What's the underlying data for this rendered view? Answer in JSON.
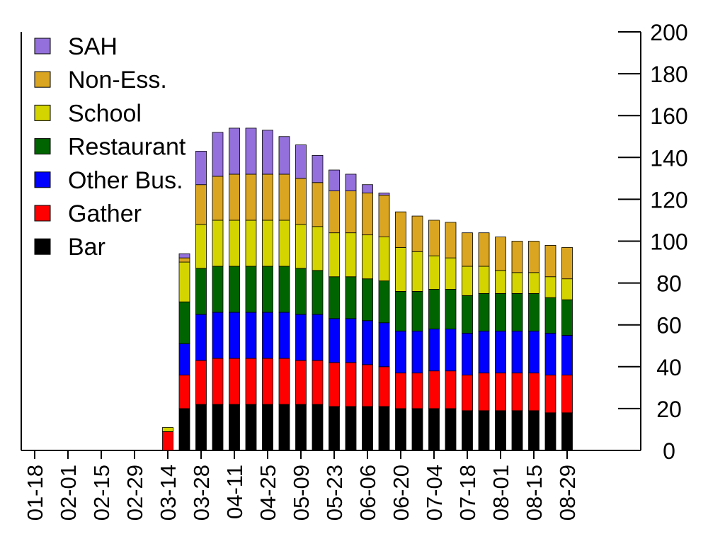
{
  "chart_data": {
    "type": "bar",
    "stacked": true,
    "title": "",
    "xlabel": "",
    "ylabel": "",
    "ylim": [
      0,
      200
    ],
    "yticks": [
      0,
      20,
      40,
      60,
      80,
      100,
      120,
      140,
      160,
      180,
      200
    ],
    "y_axis_side": "right",
    "legend_position": "top-left",
    "categories": [
      "01-11",
      "01-18",
      "01-25",
      "02-01",
      "02-08",
      "02-15",
      "02-22",
      "02-29",
      "03-07",
      "03-14",
      "03-21",
      "03-28",
      "04-04",
      "04-11",
      "04-18",
      "04-25",
      "05-02",
      "05-09",
      "05-16",
      "05-23",
      "05-30",
      "06-06",
      "06-13",
      "06-20",
      "06-27",
      "07-04",
      "07-11",
      "07-18",
      "07-25",
      "08-01",
      "08-08",
      "08-15",
      "08-22",
      "08-29"
    ],
    "tick_labels": [
      "01-18",
      "02-01",
      "02-15",
      "02-29",
      "03-14",
      "03-28",
      "04-11",
      "04-25",
      "05-09",
      "05-23",
      "06-06",
      "06-20",
      "07-04",
      "07-18",
      "08-01",
      "08-15",
      "08-29"
    ],
    "series": [
      {
        "name": "Bar",
        "color": "#000000",
        "values": [
          0,
          0,
          0,
          0,
          0,
          0,
          0,
          0,
          0,
          0,
          20,
          22,
          22,
          22,
          22,
          22,
          22,
          22,
          22,
          21,
          21,
          21,
          21,
          20,
          20,
          20,
          20,
          19,
          19,
          19,
          19,
          19,
          18,
          18
        ]
      },
      {
        "name": "Gather",
        "color": "#ff0000",
        "values": [
          0,
          0,
          0,
          0,
          0,
          0,
          0,
          0,
          0,
          9,
          16,
          21,
          22,
          22,
          22,
          22,
          22,
          21,
          21,
          21,
          21,
          20,
          19,
          17,
          17,
          18,
          18,
          17,
          18,
          18,
          18,
          18,
          18,
          18
        ]
      },
      {
        "name": "Other Bus.",
        "color": "#0000ff",
        "values": [
          0,
          0,
          0,
          0,
          0,
          0,
          0,
          0,
          0,
          0,
          15,
          22,
          22,
          22,
          22,
          22,
          22,
          22,
          22,
          21,
          21,
          21,
          21,
          20,
          20,
          20,
          20,
          20,
          20,
          20,
          20,
          20,
          20,
          19
        ]
      },
      {
        "name": "Restaurant",
        "color": "#006400",
        "values": [
          0,
          0,
          0,
          0,
          0,
          0,
          0,
          0,
          0,
          0,
          20,
          22,
          22,
          22,
          22,
          22,
          22,
          22,
          21,
          20,
          20,
          20,
          20,
          19,
          19,
          19,
          19,
          18,
          18,
          18,
          18,
          18,
          17,
          17
        ]
      },
      {
        "name": "School",
        "color": "#d4d400",
        "values": [
          0,
          0,
          0,
          0,
          0,
          0,
          0,
          0,
          0,
          2,
          19,
          21,
          22,
          22,
          22,
          22,
          22,
          21,
          21,
          21,
          21,
          21,
          21,
          21,
          19,
          16,
          15,
          14,
          13,
          11,
          10,
          10,
          10,
          10
        ]
      },
      {
        "name": "Non-Ess.",
        "color": "#daa520",
        "values": [
          0,
          0,
          0,
          0,
          0,
          0,
          0,
          0,
          0,
          0,
          2,
          19,
          21,
          22,
          22,
          22,
          22,
          22,
          21,
          20,
          20,
          20,
          20,
          17,
          17,
          17,
          17,
          16,
          16,
          16,
          15,
          15,
          15,
          15
        ]
      },
      {
        "name": "SAH",
        "color": "#9370db",
        "values": [
          0,
          0,
          0,
          0,
          0,
          0,
          0,
          0,
          0,
          0,
          2,
          16,
          21,
          22,
          22,
          21,
          18,
          16,
          13,
          10,
          8,
          4,
          1,
          0,
          0,
          0,
          0,
          0,
          0,
          0,
          0,
          0,
          0,
          0
        ]
      }
    ]
  }
}
